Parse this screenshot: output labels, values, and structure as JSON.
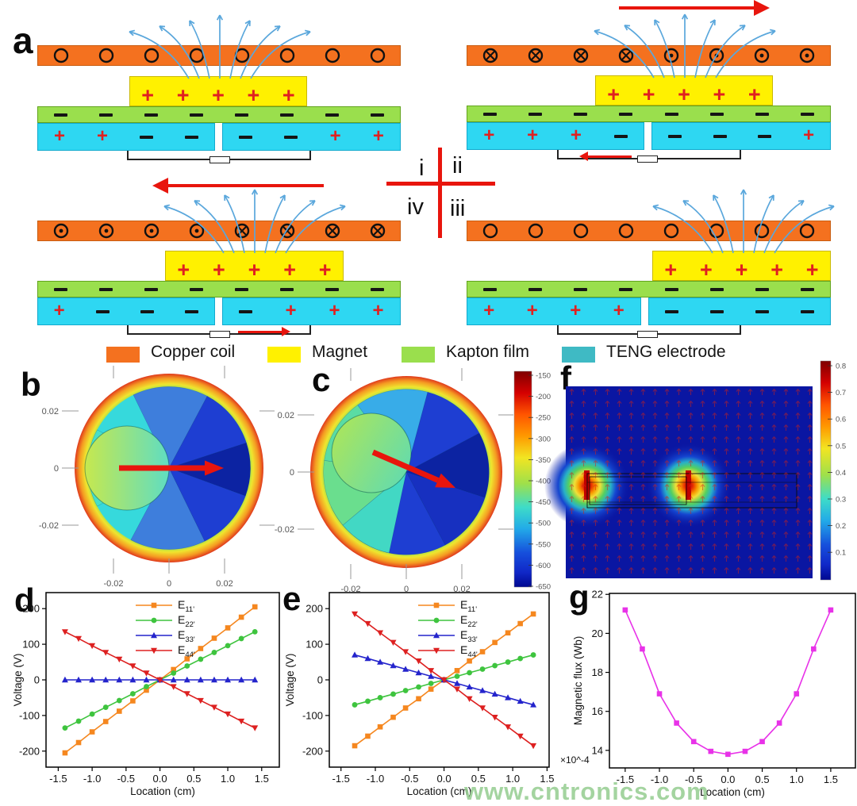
{
  "panels": {
    "a": "a",
    "b": "b",
    "c": "c",
    "d": "d",
    "e": "e",
    "f": "f",
    "g": "g"
  },
  "colors": {
    "coil": "#F4711F",
    "magnet": "#FFF100",
    "film": "#9ADF4D",
    "electrode": "#2ED7F2",
    "electrode_legend": "#3FBAC4",
    "plus": "#E02020",
    "minus": "#151515",
    "field_line": "#5AA7DC",
    "arrow_red": "#E8150D"
  },
  "legend": {
    "items": [
      {
        "label": "Copper coil",
        "color": "#F4711F"
      },
      {
        "label": "Magnet",
        "color": "#FFF100"
      },
      {
        "label": "Kapton film",
        "color": "#9ADF4D"
      },
      {
        "label": "TENG electrode",
        "color": "#3FBAC4"
      }
    ]
  },
  "schematic": {
    "cross_labels": {
      "i": "i",
      "ii": "ii",
      "iii": "iii",
      "iv": "iv"
    },
    "states": {
      "i": {
        "coil_symbols": [
          "o",
          "o",
          "o",
          "o",
          "o",
          "o",
          "o",
          "o"
        ],
        "magnet_plus": [
          "+",
          "+",
          "+",
          "+",
          "+"
        ],
        "film_signs": [
          "−",
          "−",
          "−",
          "−",
          "−",
          "−",
          "−",
          "−"
        ],
        "electrode_left": [
          "+",
          "+",
          "−",
          "−"
        ],
        "electrode_right": [
          "−",
          "−",
          "+",
          "+"
        ],
        "top_arrow": null,
        "circuit_arrow": null
      },
      "ii": {
        "coil_symbols": [
          "x",
          "x",
          "x",
          "x",
          "dot",
          "dot",
          "dot",
          "dot"
        ],
        "magnet_plus": [
          "+",
          "+",
          "+",
          "+",
          "+"
        ],
        "film_signs": [
          "−",
          "−",
          "−",
          "−",
          "−",
          "−",
          "−",
          "−"
        ],
        "electrode_left": [
          "+",
          "+",
          "+",
          "−"
        ],
        "electrode_right": [
          "−",
          "−",
          "−",
          "+"
        ],
        "top_arrow": "right",
        "circuit_arrow": "left"
      },
      "iii": {
        "coil_symbols": [
          "o",
          "o",
          "o",
          "o",
          "o",
          "o",
          "o",
          "o"
        ],
        "magnet_plus": [
          "+",
          "+",
          "+",
          "+",
          "+"
        ],
        "film_signs": [
          "−",
          "−",
          "−",
          "−",
          "−",
          "−",
          "−",
          "−"
        ],
        "electrode_left": [
          "+",
          "+",
          "+",
          "+"
        ],
        "electrode_right": [
          "−",
          "−",
          "−",
          "−"
        ],
        "top_arrow": null,
        "circuit_arrow": null
      },
      "iv": {
        "coil_symbols": [
          "dot",
          "dot",
          "dot",
          "dot",
          "x",
          "x",
          "x",
          "x"
        ],
        "magnet_plus": [
          "+",
          "+",
          "+",
          "+",
          "+"
        ],
        "film_signs": [
          "−",
          "−",
          "−",
          "−",
          "−",
          "−",
          "−",
          "−"
        ],
        "electrode_left": [
          "+",
          "−",
          "−",
          "−"
        ],
        "electrode_right": [
          "−",
          "+",
          "+",
          "+"
        ],
        "top_arrow": "left",
        "circuit_arrow": "right"
      }
    }
  },
  "panel_b": {
    "yticks": [
      "0.02",
      "0",
      "-0.02"
    ],
    "xticks": [
      "-0.02",
      "0",
      "0.02"
    ],
    "arrow_direction": "right"
  },
  "panel_c": {
    "yticks": [
      "0.02",
      "0",
      "-0.02"
    ],
    "xticks": [
      "-0.02",
      "0",
      "0.02"
    ],
    "arrow_direction": "down-right"
  },
  "colorbar_bc": {
    "ticks": [
      "-150",
      "-200",
      "-250",
      "-300",
      "-350",
      "-400",
      "-450",
      "-500",
      "-550",
      "-600",
      "-650"
    ]
  },
  "panel_f": {
    "colorbar_ticks": [
      "0.8",
      "0.7",
      "0.6",
      "0.5",
      "0.4",
      "0.3",
      "0.2",
      "0.1"
    ]
  },
  "watermark": "www.cntronics.com",
  "chart_data": [
    {
      "id": "d",
      "type": "line",
      "title": "",
      "xlabel": "Location (cm)",
      "ylabel": "Voltage (V)",
      "xlim": [
        -1.68,
        1.76
      ],
      "ylim": [
        -245,
        245
      ],
      "xtick_values": [
        -1.5,
        -1.0,
        -0.5,
        0.0,
        0.5,
        1.0,
        1.5
      ],
      "xtick_labels": [
        "-1.5",
        "-1.0",
        "-0.5",
        "0.0",
        "0.5",
        "1.0",
        "1.5"
      ],
      "ytick_values": [
        -200,
        -100,
        0,
        100,
        200
      ],
      "ytick_labels": [
        "-200",
        "-100",
        "0",
        "100",
        "200"
      ],
      "x": [
        -1.4,
        -1.2,
        -1.0,
        -0.8,
        -0.6,
        -0.4,
        -0.2,
        0,
        0.2,
        0.4,
        0.6,
        0.8,
        1.0,
        1.2,
        1.4
      ],
      "series": [
        {
          "name": "E",
          "sub": "11'",
          "color": "#F5871F",
          "marker": "square",
          "values": [
            -205,
            -176,
            -146,
            -117,
            -88,
            -59,
            -29,
            0,
            29,
            59,
            88,
            117,
            146,
            176,
            205
          ]
        },
        {
          "name": "E",
          "sub": "22'",
          "color": "#3EC43E",
          "marker": "circle",
          "values": [
            -135,
            -116,
            -96,
            -77,
            -58,
            -39,
            -19,
            0,
            19,
            39,
            58,
            77,
            96,
            116,
            135
          ]
        },
        {
          "name": "E",
          "sub": "33'",
          "color": "#2424CC",
          "marker": "triangle-up",
          "values": [
            0,
            0,
            0,
            0,
            0,
            0,
            0,
            0,
            0,
            0,
            0,
            0,
            0,
            0,
            0
          ]
        },
        {
          "name": "E",
          "sub": "44'",
          "color": "#DD2020",
          "marker": "triangle-down",
          "values": [
            135,
            116,
            96,
            77,
            58,
            39,
            19,
            0,
            -19,
            -39,
            -58,
            -77,
            -96,
            -116,
            -135
          ]
        }
      ],
      "legend_position": "top-center",
      "grid": false
    },
    {
      "id": "e",
      "type": "line",
      "title": "",
      "xlabel": "Location (cm)",
      "ylabel": "Voltage (V)",
      "xlim": [
        -1.67,
        1.53
      ],
      "ylim": [
        -245,
        245
      ],
      "xtick_values": [
        -1.5,
        -1.0,
        -0.5,
        0.0,
        0.5,
        1.0,
        1.5
      ],
      "xtick_labels": [
        "-1.5",
        "-1.0",
        "-0.5",
        "0.0",
        "0.5",
        "1.0",
        "1.5"
      ],
      "ytick_values": [
        -200,
        -100,
        0,
        100,
        200
      ],
      "ytick_labels": [
        "-200",
        "-100",
        "0",
        "100",
        "200"
      ],
      "x": [
        -1.3,
        -1.11,
        -0.93,
        -0.74,
        -0.56,
        -0.37,
        -0.19,
        0,
        0.19,
        0.37,
        0.56,
        0.74,
        0.93,
        1.11,
        1.3
      ],
      "series": [
        {
          "name": "E",
          "sub": "11'",
          "color": "#F5871F",
          "marker": "square",
          "values": [
            -185,
            -158,
            -132,
            -105,
            -79,
            -53,
            -26,
            0,
            26,
            53,
            79,
            105,
            132,
            158,
            185
          ]
        },
        {
          "name": "E",
          "sub": "22'",
          "color": "#3EC43E",
          "marker": "circle",
          "values": [
            -70,
            -60,
            -50,
            -40,
            -30,
            -20,
            -10,
            0,
            10,
            20,
            30,
            40,
            50,
            60,
            70
          ]
        },
        {
          "name": "E",
          "sub": "33'",
          "color": "#2424CC",
          "marker": "triangle-up",
          "values": [
            70,
            60,
            50,
            40,
            30,
            20,
            10,
            0,
            -10,
            -20,
            -30,
            -40,
            -50,
            -60,
            -70
          ]
        },
        {
          "name": "E",
          "sub": "44'",
          "color": "#DD2020",
          "marker": "triangle-down",
          "values": [
            185,
            158,
            132,
            105,
            79,
            53,
            26,
            0,
            -26,
            -53,
            -79,
            -105,
            -132,
            -158,
            -185
          ]
        }
      ],
      "legend_position": "top-center",
      "grid": false
    },
    {
      "id": "g",
      "type": "line",
      "title": "",
      "xlabel": "Location (cm)",
      "ylabel": "Magnetic flux (Wb)",
      "scale_note": "×10^-4",
      "xlim": [
        -1.73,
        1.86
      ],
      "ylim": [
        13.1,
        22.05
      ],
      "xtick_values": [
        -1.5,
        -1.0,
        -0.5,
        0.0,
        0.5,
        1.0,
        1.5
      ],
      "xtick_labels": [
        "-1.5",
        "-1.0",
        "-0.5",
        "0.0",
        "0.5",
        "1.0",
        "1.5"
      ],
      "ytick_values": [
        14,
        16,
        18,
        20,
        22
      ],
      "ytick_labels": [
        "14",
        "16",
        "18",
        "20",
        "22"
      ],
      "x": [
        -1.5,
        -1.25,
        -1.0,
        -0.75,
        -0.5,
        -0.25,
        0,
        0.25,
        0.5,
        0.75,
        1.0,
        1.25,
        1.5
      ],
      "series": [
        {
          "name": "Magnetic flux",
          "sub": "",
          "color": "#E832E8",
          "marker": "square",
          "values": [
            21.2,
            19.2,
            16.9,
            15.4,
            14.45,
            13.95,
            13.8,
            13.95,
            14.45,
            15.4,
            16.9,
            19.2,
            21.2
          ]
        }
      ],
      "legend_position": "none",
      "grid": false
    }
  ]
}
